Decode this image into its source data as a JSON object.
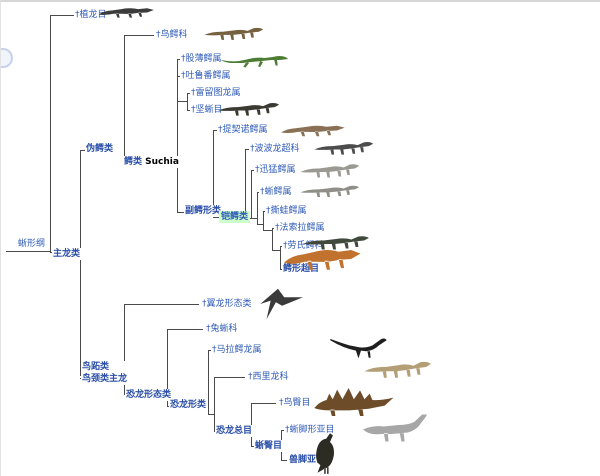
{
  "page": {
    "background": "#ffffff",
    "link_color": "#2f5bb7",
    "clade_color": "#2b4fa8",
    "highlight_bg": "#ccffcc",
    "line_color": "#4a4a4a"
  },
  "tree": {
    "root_context": "蜥形纲",
    "hierarchy": {
      "蜥形纲": {
        "†植龙目": null,
        "主龙类": {
          "伪鳄类": {
            "†鸟鳄科": null,
            "鳄类 Suchia": {
              "†股薄鳄属": null,
              "†吐鲁番鳄属": null,
              "clade_a": {
                "†雷留图龙属": null,
                "†坚蜥目": null
              },
              "副鳄形类": {
                "†提契诺鳄属": null,
                "铠鳄类": {
                  "†波波龙超科": null,
                  "ladder": {
                    "†迅猛鳄属": null,
                    "†蜥鳄属": null,
                    "†撕蛙鳄属": null,
                    "†法索拉鳄属": null,
                    "†劳氏鳄科": null,
                    "鳄形超目": null
                  }
                }
              }
            }
          },
          "鸟跖类 鸟颈类主龙": {
            "†翼龙形态类": null,
            "恐龙形态类": {
              "†兔蜥科": null,
              "恐龙形类": {
                "†马拉鳄龙属": null,
                "clade_b": {
                  "†西里龙科": null,
                  "恐龙总目": {
                    "†鸟臀目": null,
                    "蜥臀目": {
                      "†蜥脚形亚目": null,
                      "兽脚亚目": null
                    }
                  }
                }
              }
            }
          }
        }
      }
    },
    "nodes": [
      {
        "id": "sauropsida",
        "text": "蜥形纲",
        "style": "link"
      },
      {
        "id": "archosauria",
        "text": "主龙类",
        "style": "clade"
      },
      {
        "id": "phytosauria",
        "text": "†植龙目",
        "style": "link"
      },
      {
        "id": "pseudosuchia",
        "text": "伪鳄类",
        "style": "clade"
      },
      {
        "id": "ornithosuchidae",
        "text": "†鸟鳄科",
        "style": "link"
      },
      {
        "id": "suchia",
        "text": "鳄类",
        "suffix": " Suchia",
        "style": "clade"
      },
      {
        "id": "gracilisuchus",
        "text": "†股薄鳄属",
        "style": "link"
      },
      {
        "id": "turfanosuchus",
        "text": "†吐鲁番鳄属",
        "style": "link"
      },
      {
        "id": "revueltosaurus",
        "text": "†雷留图龙属",
        "style": "link"
      },
      {
        "id": "aetosauria",
        "text": "†坚蜥目",
        "style": "link"
      },
      {
        "id": "paracrocodylomorpha",
        "text": "副鳄形类",
        "style": "clade"
      },
      {
        "id": "ticinosuchus",
        "text": "†提契诺鳄属",
        "style": "link"
      },
      {
        "id": "loricata",
        "text": "铠鳄类",
        "style": "highlight"
      },
      {
        "id": "poposauroidea",
        "text": "†波波龙超科",
        "style": "link"
      },
      {
        "id": "prestosuchus",
        "text": "†迅猛鳄属",
        "style": "link"
      },
      {
        "id": "saurosuchus",
        "text": "†蜥鳄属",
        "style": "link"
      },
      {
        "id": "batrachotomus",
        "text": "†撕蛙鳄属",
        "style": "link"
      },
      {
        "id": "fasolasuchus",
        "text": "†法索拉鳄属",
        "style": "link"
      },
      {
        "id": "rauisuchidae",
        "text": "†劳氏鳄科",
        "style": "link"
      },
      {
        "id": "crocodylomorpha",
        "text": "鳄形超目",
        "style": "clade"
      },
      {
        "id": "avemetatarsalia",
        "text": "鸟跖类",
        "text2": "鸟颈类主龙",
        "style": "clade"
      },
      {
        "id": "pterosauromorpha",
        "text": "†翼龙形态类",
        "style": "link"
      },
      {
        "id": "dinosauromorpha",
        "text": "恐龙形态类",
        "style": "clade"
      },
      {
        "id": "lagerpetidae",
        "text": "†兔蜥科",
        "style": "link"
      },
      {
        "id": "dinosauriformes",
        "text": "恐龙形类",
        "style": "clade"
      },
      {
        "id": "marasuchus",
        "text": "†马拉鳄龙属",
        "style": "link"
      },
      {
        "id": "silesauridae",
        "text": "†西里龙科",
        "style": "link"
      },
      {
        "id": "dinosauria",
        "text": "恐龙总目",
        "style": "clade"
      },
      {
        "id": "ornithischia",
        "text": "†鸟臀目",
        "style": "link"
      },
      {
        "id": "saurischia",
        "text": "蜥臀目",
        "style": "clade"
      },
      {
        "id": "sauropodomorpha",
        "text": "†蜥脚形亚目",
        "style": "link"
      },
      {
        "id": "theropoda",
        "text": "兽脚亚目",
        "style": "clade"
      }
    ]
  },
  "silhouettes": [
    {
      "id": "phytosauria_img",
      "name": "phytosaur-silhouette",
      "type": "croc",
      "color": "#3b3b3b"
    },
    {
      "id": "ornithosuchidae_img",
      "name": "ornithosuchid-silhouette",
      "type": "quad",
      "color": "#75603f"
    },
    {
      "id": "gracilisuchus_img",
      "name": "gracilisuchus-silhouette",
      "type": "lizard",
      "color": "#4c7d33"
    },
    {
      "id": "aetosauria_img",
      "name": "aetosaur-silhouette",
      "type": "quad",
      "color": "#3a3a32"
    },
    {
      "id": "ticinosuchus_img",
      "name": "ticinosuchus-silhouette",
      "type": "croc",
      "color": "#8a7155"
    },
    {
      "id": "poposauroidea_img",
      "name": "poposauroid-silhouette",
      "type": "quad",
      "color": "#4c4c4c"
    },
    {
      "id": "prestosuchus_img",
      "name": "prestosuchus-silhouette",
      "type": "quad",
      "color": "#9a9a92"
    },
    {
      "id": "saurosuchus_img",
      "name": "saurosuchus-silhouette",
      "type": "quad",
      "color": "#8f8f88"
    },
    {
      "id": "rauisuchidae_img",
      "name": "rauisuchid-silhouette",
      "type": "quad",
      "color": "#41493c"
    },
    {
      "id": "crocodylomorpha_img",
      "name": "crocodylomorph-silhouette",
      "type": "croc",
      "color": "#c0722e"
    },
    {
      "id": "pterosauromorpha_img",
      "name": "pterosaur-silhouette",
      "type": "ptero",
      "color": "#3a3a3a"
    },
    {
      "id": "marasuchus_img",
      "name": "marasuchus-silhouette",
      "type": "biped",
      "color": "#1f1f1f"
    },
    {
      "id": "silesauridae_img",
      "name": "silesaurid-silhouette",
      "type": "quad",
      "color": "#b39e76"
    },
    {
      "id": "ornithischia_img",
      "name": "stegosaur-silhouette",
      "type": "stego",
      "color": "#6d4c2a"
    },
    {
      "id": "sauropodomorpha_img",
      "name": "sauropod-silhouette",
      "type": "sauropod",
      "color": "#a7a7a7"
    },
    {
      "id": "theropoda_img",
      "name": "bird-silhouette",
      "type": "bird",
      "color": "#2c2c24"
    }
  ]
}
